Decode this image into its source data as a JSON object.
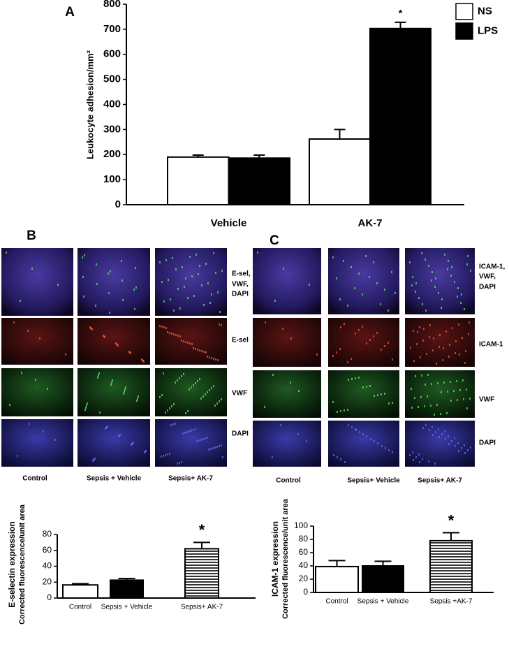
{
  "chart_data": [
    {
      "type": "bar",
      "panel_label": "A",
      "ylabel": [
        "Leukocyte adhesion/mm²"
      ],
      "categories": [
        "Vehicle",
        "AK-7"
      ],
      "series": [
        {
          "name": "NS",
          "color": "#ffffff",
          "values": [
            190,
            262
          ],
          "errors": [
            8,
            38
          ]
        },
        {
          "name": "LPS",
          "color": "#000000",
          "values": [
            186,
            703
          ],
          "errors": [
            12,
            25
          ]
        }
      ],
      "annotation": "*",
      "ylim": [
        0,
        800
      ],
      "yticks": [
        0,
        100,
        200,
        300,
        400,
        500,
        600,
        700,
        800
      ],
      "legend": "top-right"
    },
    {
      "type": "bar",
      "ylabel": [
        "E-selectin expression",
        "Corrected fluorescence/unit area"
      ],
      "categories": [
        "Control",
        "Sepsis + Vehicle",
        "Sepsis+ AK-7"
      ],
      "values": [
        16.5,
        22.5,
        62
      ],
      "errors": [
        1.5,
        2,
        8
      ],
      "bar_fills": [
        "#ffffff",
        "#000000",
        "hatch"
      ],
      "annotation": "*",
      "ylim": [
        0,
        80
      ],
      "yticks": [
        0,
        20,
        40,
        60,
        80
      ]
    },
    {
      "type": "bar",
      "ylabel": [
        "ICAM-1 expression",
        "Corrected fluorescence/unit area"
      ],
      "categories": [
        "Control",
        "Sepsis + Vehicle",
        "Sepsis +AK-7"
      ],
      "values": [
        39,
        40,
        78
      ],
      "errors": [
        9,
        7,
        12
      ],
      "bar_fills": [
        "#ffffff",
        "#000000",
        "hatch"
      ],
      "annotation": "*",
      "ylim": [
        0,
        100
      ],
      "yticks": [
        0,
        20,
        40,
        60,
        80,
        100
      ]
    }
  ],
  "micrographs": [
    {
      "panel_label": "B",
      "row_labels": [
        [
          "E-sel,",
          "VWF,",
          "DAPI"
        ],
        [
          "E-sel"
        ],
        [
          "VWF"
        ],
        [
          "DAPI"
        ]
      ],
      "column_labels": [
        "Control",
        "Sepsis + Vehicle",
        "Sepsis+ AK-7"
      ]
    },
    {
      "panel_label": "C",
      "row_labels": [
        [
          "ICAM-1,",
          "VWF,",
          "DAPI"
        ],
        [
          "ICAM-1"
        ],
        [
          "VWF"
        ],
        [
          "DAPI"
        ]
      ],
      "column_labels": [
        "Control",
        "Sepsis+ Vehicle",
        "Sepsis+ AK-7"
      ]
    }
  ]
}
